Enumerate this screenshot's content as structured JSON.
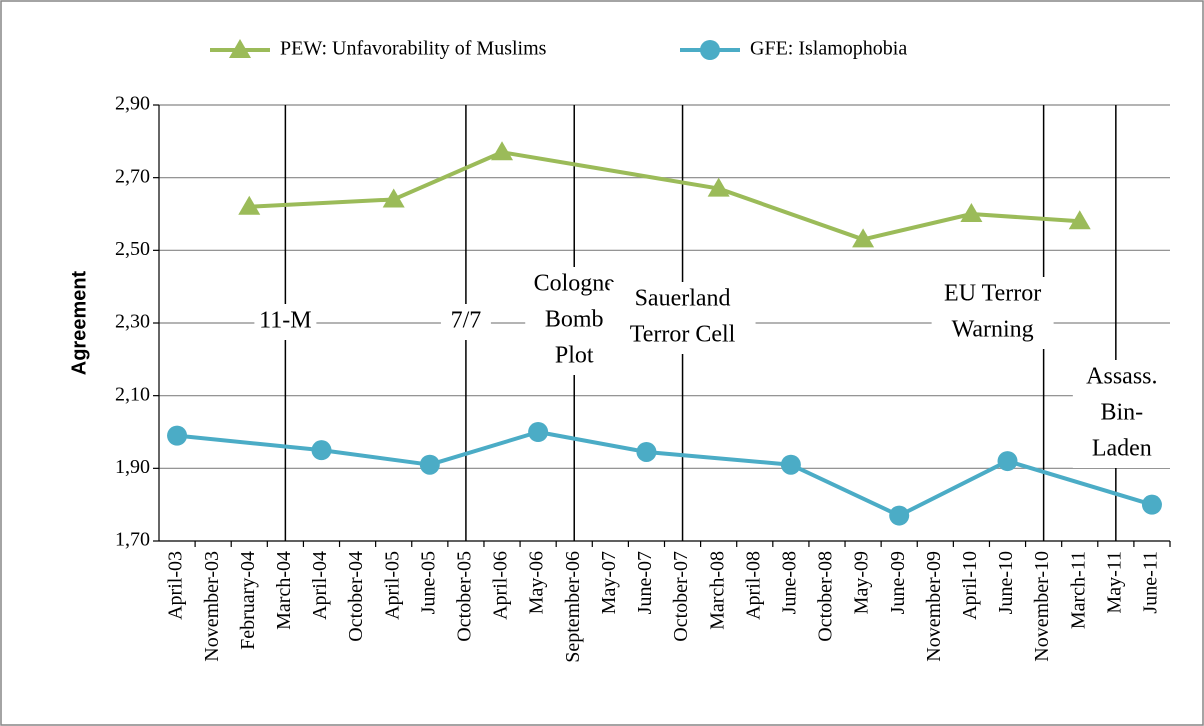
{
  "chart_data": {
    "type": "line",
    "y_axis_label": "Agreement",
    "categories": [
      "April-03",
      "November-03",
      "February-04",
      "March-04",
      "April-04",
      "October-04",
      "April-05",
      "June-05",
      "October-05",
      "April-06",
      "May-06",
      "September-06",
      "May-07",
      "June-07",
      "October-07",
      "March-08",
      "April-08",
      "June-08",
      "October-08",
      "May-09",
      "June-09",
      "November-09",
      "April-10",
      "June-10",
      "November-10",
      "March-11",
      "May-11",
      "June-11"
    ],
    "series": [
      {
        "name": "PEW: Unfavorability of Muslims",
        "color": "#9bbb59",
        "marker": "triangle",
        "values": [
          null,
          null,
          2.62,
          null,
          null,
          null,
          2.64,
          null,
          null,
          2.77,
          null,
          null,
          null,
          null,
          null,
          2.67,
          null,
          null,
          null,
          2.53,
          null,
          null,
          2.6,
          null,
          null,
          2.58,
          null,
          null
        ]
      },
      {
        "name": "GFE: Islamophobia",
        "color": "#4bacc6",
        "marker": "circle",
        "values": [
          1.99,
          null,
          null,
          null,
          1.95,
          null,
          null,
          1.91,
          null,
          null,
          2.0,
          null,
          null,
          1.945,
          null,
          null,
          null,
          1.91,
          null,
          null,
          1.77,
          null,
          null,
          1.92,
          null,
          null,
          null,
          1.8
        ]
      }
    ],
    "span_gaps": true,
    "ylim": [
      1.7,
      2.9
    ],
    "yticks": [
      {
        "value": 1.7,
        "label": "1,70"
      },
      {
        "value": 1.9,
        "label": "1,90"
      },
      {
        "value": 2.1,
        "label": "2,10"
      },
      {
        "value": 2.3,
        "label": "2,30"
      },
      {
        "value": 2.5,
        "label": "2,50"
      },
      {
        "value": 2.7,
        "label": "2,70"
      },
      {
        "value": 2.9,
        "label": "2,90"
      }
    ],
    "grid": true,
    "legend": "top",
    "events": [
      {
        "at": "March-04",
        "lines": [
          "11-M"
        ]
      },
      {
        "at": "October-05",
        "lines": [
          "7/7"
        ]
      },
      {
        "at": "September-06",
        "lines": [
          "Cologne",
          "Bomb",
          "Plot"
        ]
      },
      {
        "at": "October-07",
        "lines": [
          "Sauerland",
          "Terror Cell"
        ]
      },
      {
        "at": "November-10",
        "lines": [
          "EU Terror",
          "Warning"
        ]
      },
      {
        "at": "May-11",
        "lines": [
          "Assass.",
          "Bin-",
          "Laden"
        ]
      }
    ]
  }
}
